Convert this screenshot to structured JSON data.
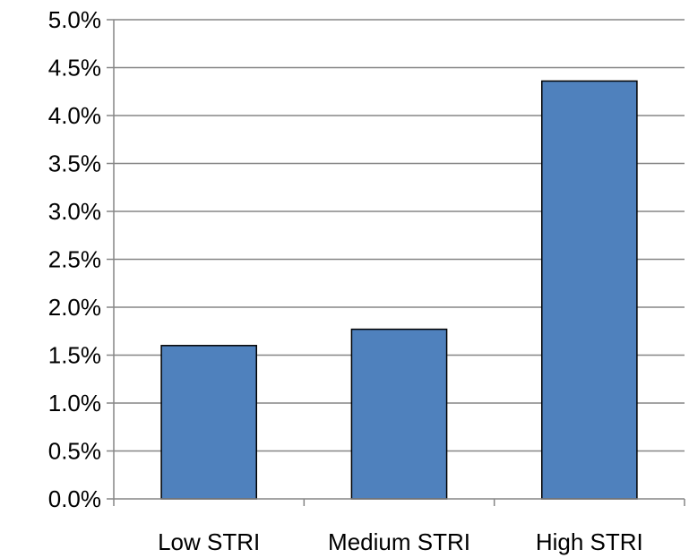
{
  "chart_data": {
    "type": "bar",
    "title": "",
    "xlabel": "",
    "ylabel": "",
    "categories": [
      "Low STRI",
      "Medium STRI",
      "High STRI"
    ],
    "values": [
      1.6,
      1.77,
      4.36
    ],
    "value_unit": "%",
    "ylim": [
      0,
      5
    ],
    "yticks": [
      "0.0%",
      "0.5%",
      "1.0%",
      "1.5%",
      "2.0%",
      "2.5%",
      "3.0%",
      "3.5%",
      "4.0%",
      "4.5%",
      "5.0%"
    ],
    "grid": true,
    "legend": "none",
    "bar_color": "#4F81BD"
  }
}
